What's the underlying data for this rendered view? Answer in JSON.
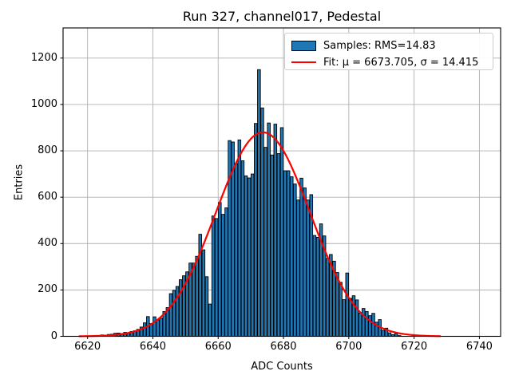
{
  "title": "Run 327, channel017, Pedestal",
  "axes": {
    "xlabel": "ADC Counts",
    "ylabel": "Entries",
    "x_ticks": [
      6620,
      6640,
      6660,
      6680,
      6700,
      6720,
      6740
    ],
    "y_ticks": [
      0,
      200,
      400,
      600,
      800,
      1000,
      1200
    ],
    "xlim": [
      6612.5,
      6746.5
    ],
    "ylim": [
      0,
      1330
    ],
    "grid": true
  },
  "legend": {
    "entries": [
      {
        "marker": "patch",
        "label": "Samples: RMS=14.83"
      },
      {
        "marker": "line",
        "label": "Fit: μ = 6673.705, σ = 14.415"
      }
    ]
  },
  "colors": {
    "bar_fill": "#1f77b4",
    "bar_edge": "#000000",
    "fit_line": "#ff0000",
    "grid": "#b0b0b0",
    "frame": "#000000",
    "background": "#ffffff"
  },
  "chart_data": {
    "type": "bar",
    "subtype": "histogram",
    "title": "Run 327, channel017, Pedestal",
    "xlabel": "ADC Counts",
    "ylabel": "Entries",
    "bin_width": 1,
    "first_bin_left_edge": 6621,
    "counts": [
      2,
      0,
      3,
      6,
      4,
      8,
      9,
      13,
      14,
      11,
      17,
      15,
      21,
      24,
      30,
      40,
      58,
      85,
      55,
      84,
      70,
      78,
      107,
      124,
      184,
      198,
      215,
      244,
      261,
      278,
      316,
      316,
      345,
      440,
      373,
      257,
      139,
      519,
      508,
      577,
      526,
      554,
      844,
      838,
      745,
      847,
      757,
      692,
      683,
      700,
      918,
      1150,
      985,
      815,
      920,
      782,
      915,
      788,
      900,
      714,
      714,
      688,
      657,
      588,
      682,
      640,
      588,
      611,
      435,
      427,
      485,
      433,
      336,
      353,
      324,
      275,
      233,
      158,
      273,
      164,
      175,
      157,
      100,
      120,
      107,
      89,
      99,
      61,
      72,
      26,
      35,
      15,
      7,
      12,
      3
    ],
    "samples_rms": 14.83,
    "fit": {
      "shape": "gaussian",
      "mu": 6673.705,
      "sigma": 14.415,
      "amplitude": 880,
      "x_range": [
        6617.5,
        6728
      ]
    },
    "xlim": [
      6612.5,
      6746.5
    ],
    "ylim": [
      0,
      1330
    ],
    "legend_position": "upper right",
    "grid": true
  }
}
